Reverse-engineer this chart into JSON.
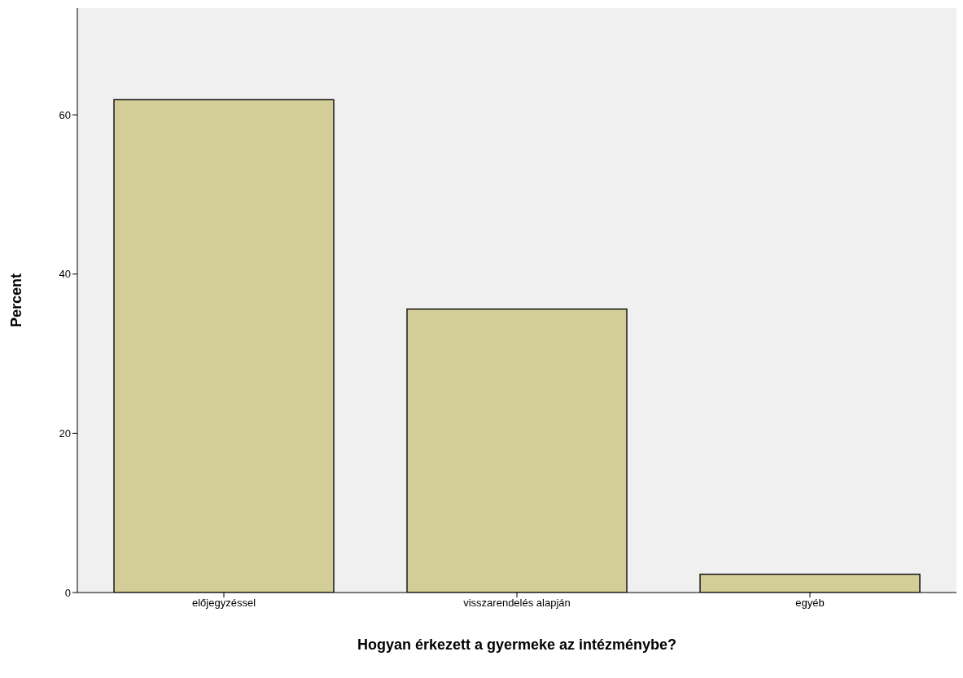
{
  "chart_data": {
    "type": "bar",
    "xlabel": "Hogyan érkezett a gyermeke az intézménybe?",
    "ylabel": "Percent",
    "categories": [
      "előjegyzéssel",
      "visszarendelés alapján",
      "egyéb"
    ],
    "values": [
      61.9,
      35.6,
      2.3
    ],
    "color": "#d3cd97",
    "ylim": [
      0,
      73.4
    ],
    "yticks": [
      0,
      20,
      40,
      60
    ],
    "grid": false
  }
}
